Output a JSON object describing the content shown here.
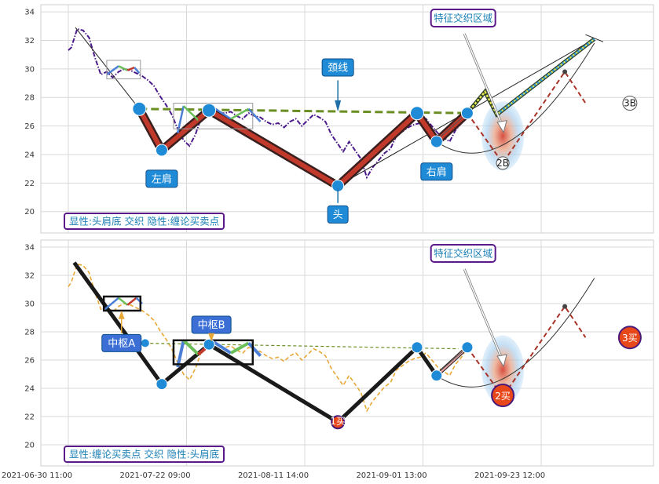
{
  "chart_data": [
    {
      "type": "line",
      "ylim": [
        18.5,
        34.5
      ],
      "yticks": [
        "20",
        "22",
        "24",
        "26",
        "28",
        "30",
        "32",
        "34"
      ],
      "grid": true,
      "price": [
        [
          0,
          31.3
        ],
        [
          0.05,
          31.5
        ],
        [
          0.15,
          32.8
        ],
        [
          0.25,
          32.7
        ],
        [
          0.35,
          32.2
        ],
        [
          0.45,
          30.8
        ],
        [
          0.55,
          29.6
        ],
        [
          0.65,
          29.8
        ],
        [
          0.75,
          29.4
        ],
        [
          0.85,
          29.8
        ],
        [
          0.95,
          30.0
        ],
        [
          1.05,
          29.9
        ],
        [
          1.15,
          29.7
        ],
        [
          1.25,
          29.5
        ],
        [
          1.35,
          29.2
        ],
        [
          1.45,
          28.8
        ],
        [
          1.55,
          28.1
        ],
        [
          1.65,
          27.5
        ],
        [
          1.75,
          26.8
        ],
        [
          1.85,
          25.8
        ],
        [
          1.95,
          25.0
        ],
        [
          2.05,
          24.6
        ],
        [
          2.15,
          25.4
        ],
        [
          2.25,
          26.6
        ],
        [
          2.35,
          27.3
        ],
        [
          2.45,
          26.8
        ],
        [
          2.55,
          26.9
        ],
        [
          2.65,
          26.9
        ],
        [
          2.75,
          27.0
        ],
        [
          2.85,
          26.7
        ],
        [
          2.95,
          26.5
        ],
        [
          3.05,
          26.9
        ],
        [
          3.15,
          26.7
        ],
        [
          3.25,
          26.6
        ],
        [
          3.35,
          26.3
        ],
        [
          3.45,
          26.1
        ],
        [
          3.55,
          26.2
        ],
        [
          3.65,
          25.9
        ],
        [
          3.75,
          26.3
        ],
        [
          3.85,
          26.5
        ],
        [
          3.95,
          26.0
        ],
        [
          4.05,
          26.4
        ],
        [
          4.15,
          26.8
        ],
        [
          4.25,
          26.6
        ],
        [
          4.35,
          26.3
        ],
        [
          4.45,
          25.4
        ],
        [
          4.55,
          24.8
        ],
        [
          4.65,
          24.2
        ],
        [
          4.75,
          24.9
        ],
        [
          4.85,
          24.3
        ],
        [
          4.95,
          23.7
        ],
        [
          5.05,
          22.4
        ],
        [
          5.15,
          23.1
        ],
        [
          5.25,
          23.6
        ],
        [
          5.35,
          24.1
        ],
        [
          5.45,
          24.4
        ],
        [
          5.55,
          25.3
        ],
        [
          5.65,
          25.6
        ],
        [
          5.75,
          25.9
        ],
        [
          5.85,
          26.1
        ],
        [
          5.95,
          26.2
        ],
        [
          6.05,
          26.5
        ],
        [
          6.15,
          26.0
        ],
        [
          6.25,
          25.5
        ],
        [
          6.35,
          25.2
        ],
        [
          6.45,
          24.9
        ],
        [
          6.55,
          25.7
        ],
        [
          6.65,
          26.2
        ],
        [
          6.75,
          26.9
        ]
      ],
      "zigzag_points": [
        [
          1.2,
          27.2
        ],
        [
          1.58,
          24.3
        ],
        [
          2.38,
          27.1
        ],
        [
          4.56,
          21.8
        ],
        [
          5.9,
          26.9
        ],
        [
          6.23,
          24.9
        ],
        [
          6.75,
          26.9
        ]
      ],
      "projection_up": [
        [
          6.75,
          26.9
        ],
        [
          7.05,
          28.4
        ],
        [
          7.25,
          26.8
        ],
        [
          8.9,
          32.1
        ]
      ],
      "projection_signal": [
        [
          6.75,
          26.9
        ],
        [
          7.35,
          23.4
        ],
        [
          8.4,
          29.8
        ],
        [
          8.75,
          27.6
        ]
      ],
      "neckline": [
        [
          1.2,
          27.2
        ],
        [
          6.75,
          26.9
        ]
      ],
      "pattern_labels": [
        {
          "text": "左肩",
          "x": 1.58,
          "y": 22.3
        },
        {
          "text": "颈线",
          "x": 4.56,
          "y": 30.1
        },
        {
          "text": "头",
          "x": 4.56,
          "y": 19.8
        },
        {
          "text": "右肩",
          "x": 6.23,
          "y": 22.8
        }
      ],
      "region_label": "特征交织区域",
      "signals": [
        "2B",
        "3B"
      ],
      "caption": "显性:头肩底 交织 隐性:缠论买卖点",
      "accent": "#1f8bd6",
      "label_fill": "#1f8bd6"
    },
    {
      "type": "line",
      "ylim": [
        18.5,
        34.5
      ],
      "yticks": [
        "20",
        "22",
        "24",
        "26",
        "28",
        "30",
        "32",
        "34"
      ],
      "grid": true,
      "price": [
        [
          0,
          31.2
        ],
        [
          0.05,
          31.5
        ],
        [
          0.15,
          32.8
        ],
        [
          0.25,
          32.7
        ],
        [
          0.35,
          32.2
        ],
        [
          0.45,
          30.8
        ],
        [
          0.55,
          29.6
        ],
        [
          0.65,
          29.8
        ],
        [
          0.75,
          29.4
        ],
        [
          0.85,
          29.8
        ],
        [
          0.95,
          30.0
        ],
        [
          1.05,
          29.9
        ],
        [
          1.15,
          29.7
        ],
        [
          1.25,
          29.5
        ],
        [
          1.35,
          29.2
        ],
        [
          1.45,
          28.8
        ],
        [
          1.55,
          28.1
        ],
        [
          1.65,
          27.5
        ],
        [
          1.75,
          26.8
        ],
        [
          1.85,
          25.8
        ],
        [
          1.95,
          25.0
        ],
        [
          2.05,
          24.6
        ],
        [
          2.15,
          25.4
        ],
        [
          2.25,
          26.6
        ],
        [
          2.35,
          27.3
        ],
        [
          2.45,
          26.8
        ],
        [
          2.55,
          26.9
        ],
        [
          2.65,
          26.9
        ],
        [
          2.75,
          27.0
        ],
        [
          2.85,
          26.7
        ],
        [
          2.95,
          26.5
        ],
        [
          3.05,
          26.9
        ],
        [
          3.15,
          26.7
        ],
        [
          3.25,
          26.6
        ],
        [
          3.35,
          26.3
        ],
        [
          3.45,
          26.1
        ],
        [
          3.55,
          26.2
        ],
        [
          3.65,
          25.9
        ],
        [
          3.75,
          26.3
        ],
        [
          3.85,
          26.5
        ],
        [
          3.95,
          26.0
        ],
        [
          4.05,
          26.4
        ],
        [
          4.15,
          26.8
        ],
        [
          4.25,
          26.6
        ],
        [
          4.35,
          26.3
        ],
        [
          4.45,
          25.4
        ],
        [
          4.55,
          24.8
        ],
        [
          4.65,
          24.2
        ],
        [
          4.75,
          24.9
        ],
        [
          4.85,
          24.3
        ],
        [
          4.95,
          23.7
        ],
        [
          5.05,
          22.4
        ],
        [
          5.15,
          23.1
        ],
        [
          5.25,
          23.6
        ],
        [
          5.35,
          24.1
        ],
        [
          5.45,
          24.4
        ],
        [
          5.55,
          25.3
        ],
        [
          5.65,
          25.6
        ],
        [
          5.75,
          25.9
        ],
        [
          5.85,
          26.1
        ],
        [
          5.95,
          26.2
        ],
        [
          6.05,
          26.5
        ],
        [
          6.15,
          26.0
        ],
        [
          6.25,
          25.5
        ],
        [
          6.35,
          25.2
        ],
        [
          6.45,
          24.9
        ],
        [
          6.55,
          25.7
        ],
        [
          6.65,
          26.2
        ],
        [
          6.75,
          26.9
        ]
      ],
      "zigzag_points": [
        [
          0.1,
          32.9
        ],
        [
          1.58,
          24.3
        ],
        [
          2.38,
          27.1
        ],
        [
          4.56,
          21.6
        ],
        [
          5.9,
          26.9
        ],
        [
          6.23,
          24.9
        ],
        [
          6.75,
          26.9
        ]
      ],
      "projection_signal": [
        [
          6.75,
          26.9
        ],
        [
          7.35,
          23.4
        ],
        [
          8.4,
          29.8
        ],
        [
          8.75,
          27.6
        ]
      ],
      "pivot_labels": [
        {
          "text": "中枢A",
          "x": 0.9,
          "y": 27.2
        },
        {
          "text": "中枢B",
          "x": 2.42,
          "y": 28.5
        }
      ],
      "region_label": "特征交织区域",
      "signals": [
        "1买",
        "2买",
        "3买"
      ],
      "caption": "显性:缠论买卖点 交织 隐性:头肩底",
      "accent": "#1f8bd6",
      "label_fill": "#3b6fd6"
    }
  ],
  "x_tick_labels": [
    "2021-06-30 11:00",
    "2021-07-22 09:00",
    "2021-08-11 14:00",
    "2021-09-01 13:00",
    "2021-09-23 12:00"
  ],
  "colors": {
    "price_top": "#4b1a8a",
    "price_bottom": "#e8a838",
    "zigzag": "#c0392b",
    "neckline": "#6b8e23",
    "signal_line": "#a93226",
    "caption_border": "#5a1a8a",
    "caption_text": "#1a7fb5",
    "signal_fill": "#e8471a"
  }
}
